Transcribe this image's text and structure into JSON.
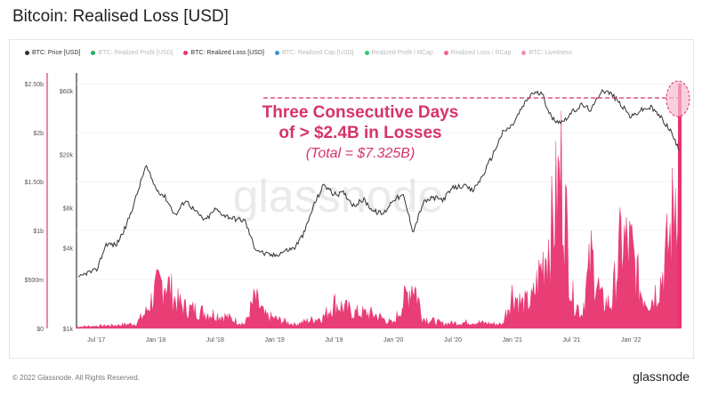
{
  "title": "Bitcoin: Realised Loss [USD]",
  "legend": [
    {
      "label": "BTC: Price [USD]",
      "color": "#333333",
      "active": true
    },
    {
      "label": "BTC: Realized Profit [USD]",
      "color": "#27ae60",
      "active": false
    },
    {
      "label": "BTC: Realized Loss [USD]",
      "color": "#e8336e",
      "active": true
    },
    {
      "label": "BTC: Realized Cap [USD]",
      "color": "#3498db",
      "active": false
    },
    {
      "label": "Realized Profit / RCap",
      "color": "#2ecc71",
      "active": false
    },
    {
      "label": "Realized Loss / RCap",
      "color": "#f06292",
      "active": false
    },
    {
      "label": "BTC: Liveliness",
      "color": "#f48fb1",
      "active": false
    }
  ],
  "annotation": {
    "line1": "Three Consecutive Days",
    "line2": "of > $2.4B in Losses",
    "line3": "(Total = $7.325B)"
  },
  "watermark": "glassnode",
  "footer": "© 2022 Glassnode. All Rights Reserved.",
  "brand": "glassnode",
  "colors": {
    "loss": "#e8336e",
    "price": "#333333",
    "annotation": "#d6336c",
    "circle_fill": "#f8bcd0"
  },
  "chart_data": {
    "type": "area",
    "x_ticks": [
      "Jul '17",
      "Jan '18",
      "Jul '18",
      "Jan '19",
      "Jul '19",
      "Jan '20",
      "Jul '20",
      "Jan '21",
      "Jul '21",
      "Jan '22"
    ],
    "y_left_ticks": [
      "$0",
      "$500m",
      "$1b",
      "$1.50b",
      "$2b",
      "$2.50b"
    ],
    "y_left_values": [
      0,
      500000000,
      1000000000,
      1500000000,
      2000000000,
      2500000000
    ],
    "y_right_ticks": [
      "$1k",
      "$4k",
      "$8k",
      "$20k",
      "$60k"
    ],
    "y_right_values": [
      1000,
      4000,
      8000,
      20000,
      60000
    ],
    "y_right_scale": "log",
    "x_range": [
      "2017-05",
      "2022-06"
    ],
    "series": [
      {
        "name": "BTC: Realized Loss [USD]",
        "axis": "left",
        "points": [
          [
            "2017-05",
            0.02
          ],
          [
            "2017-07",
            0.03
          ],
          [
            "2017-09",
            0.04
          ],
          [
            "2017-11",
            0.06
          ],
          [
            "2017-12",
            0.2
          ],
          [
            "2018-01",
            0.48
          ],
          [
            "2018-02",
            0.62
          ],
          [
            "2018-03",
            0.35
          ],
          [
            "2018-04",
            0.26
          ],
          [
            "2018-06",
            0.2
          ],
          [
            "2018-08",
            0.15
          ],
          [
            "2018-10",
            0.05
          ],
          [
            "2018-11",
            0.38
          ],
          [
            "2018-12",
            0.16
          ],
          [
            "2019-03",
            0.05
          ],
          [
            "2019-06",
            0.15
          ],
          [
            "2019-07",
            0.32
          ],
          [
            "2019-09",
            0.2
          ],
          [
            "2019-11",
            0.18
          ],
          [
            "2020-01",
            0.06
          ],
          [
            "2020-03",
            0.6
          ],
          [
            "2020-04",
            0.13
          ],
          [
            "2020-06",
            0.06
          ],
          [
            "2020-09",
            0.08
          ],
          [
            "2020-12",
            0.05
          ],
          [
            "2021-01",
            0.45
          ],
          [
            "2021-02",
            0.3
          ],
          [
            "2021-03",
            0.35
          ],
          [
            "2021-04",
            0.8
          ],
          [
            "2021-05",
            1.28
          ],
          [
            "2021-06",
            2.05
          ],
          [
            "2021-07",
            0.42
          ],
          [
            "2021-08",
            0.18
          ],
          [
            "2021-09",
            0.9
          ],
          [
            "2021-10",
            0.35
          ],
          [
            "2021-11",
            0.3
          ],
          [
            "2021-12",
            1.1
          ],
          [
            "2022-01",
            1.0
          ],
          [
            "2022-02",
            0.45
          ],
          [
            "2022-03",
            0.35
          ],
          [
            "2022-04",
            0.6
          ],
          [
            "2022-05",
            1.2
          ],
          [
            "2022-06",
            2.5
          ]
        ]
      },
      {
        "name": "BTC: Price [USD]",
        "axis": "right",
        "points": [
          [
            "2017-05",
            2300
          ],
          [
            "2017-06",
            2600
          ],
          [
            "2017-07",
            2700
          ],
          [
            "2017-08",
            4300
          ],
          [
            "2017-09",
            4200
          ],
          [
            "2017-10",
            5800
          ],
          [
            "2017-11",
            9500
          ],
          [
            "2017-12",
            16500
          ],
          [
            "2018-01",
            11200
          ],
          [
            "2018-02",
            9500
          ],
          [
            "2018-03",
            7000
          ],
          [
            "2018-04",
            9200
          ],
          [
            "2018-05",
            7500
          ],
          [
            "2018-06",
            6400
          ],
          [
            "2018-07",
            7800
          ],
          [
            "2018-08",
            7000
          ],
          [
            "2018-09",
            6600
          ],
          [
            "2018-10",
            6400
          ],
          [
            "2018-11",
            4000
          ],
          [
            "2018-12",
            3600
          ],
          [
            "2019-01",
            3500
          ],
          [
            "2019-02",
            3800
          ],
          [
            "2019-03",
            4000
          ],
          [
            "2019-04",
            5200
          ],
          [
            "2019-05",
            8500
          ],
          [
            "2019-06",
            12000
          ],
          [
            "2019-07",
            10000
          ],
          [
            "2019-08",
            10300
          ],
          [
            "2019-09",
            8300
          ],
          [
            "2019-10",
            9200
          ],
          [
            "2019-11",
            7500
          ],
          [
            "2019-12",
            7200
          ],
          [
            "2020-01",
            9300
          ],
          [
            "2020-02",
            9800
          ],
          [
            "2020-03",
            5300
          ],
          [
            "2020-04",
            8700
          ],
          [
            "2020-05",
            9500
          ],
          [
            "2020-06",
            9200
          ],
          [
            "2020-07",
            11200
          ],
          [
            "2020-08",
            11700
          ],
          [
            "2020-09",
            10700
          ],
          [
            "2020-10",
            13800
          ],
          [
            "2020-11",
            19700
          ],
          [
            "2020-12",
            29000
          ],
          [
            "2021-01",
            33000
          ],
          [
            "2021-02",
            45000
          ],
          [
            "2021-03",
            58000
          ],
          [
            "2021-04",
            57000
          ],
          [
            "2021-05",
            37000
          ],
          [
            "2021-06",
            35000
          ],
          [
            "2021-07",
            41000
          ],
          [
            "2021-08",
            47000
          ],
          [
            "2021-09",
            43000
          ],
          [
            "2021-10",
            61000
          ],
          [
            "2021-11",
            57000
          ],
          [
            "2021-12",
            47000
          ],
          [
            "2022-01",
            38000
          ],
          [
            "2022-02",
            43000
          ],
          [
            "2022-03",
            45000
          ],
          [
            "2022-04",
            38000
          ],
          [
            "2022-05",
            30000
          ],
          [
            "2022-06",
            20000
          ]
        ]
      }
    ],
    "annotation_level": 60000,
    "grid": true,
    "legend_position": "top"
  }
}
